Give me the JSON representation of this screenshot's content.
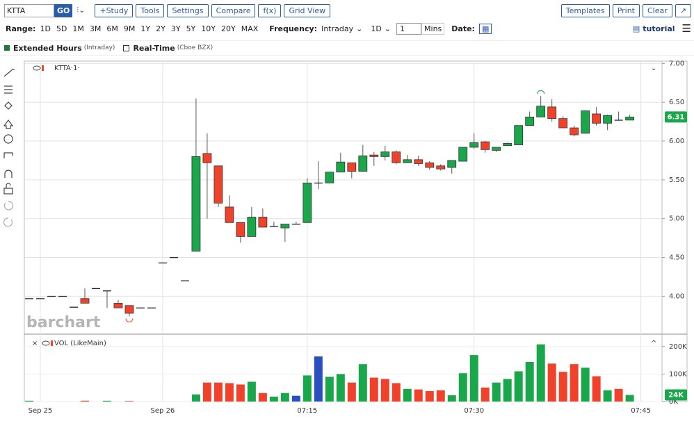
{
  "toolbar": {
    "symbol": "KTTA",
    "go": "GO",
    "buttons": [
      "+Study",
      "Tools",
      "Settings",
      "Compare",
      "f(x)",
      "Grid View"
    ],
    "right_buttons": [
      "Templates",
      "Print",
      "Clear"
    ]
  },
  "range_bar": {
    "range_label": "Range:",
    "ranges": [
      "1D",
      "5D",
      "1M",
      "3M",
      "6M",
      "9M",
      "1Y",
      "2Y",
      "3Y",
      "5Y",
      "10Y",
      "20Y",
      "MAX"
    ],
    "frequency_label": "Frequency:",
    "frequency": "Intraday",
    "period": "1D",
    "interval": "1",
    "interval_unit": "Mins",
    "date_label": "Date:",
    "tutorial": "tutorial"
  },
  "legend_bar": {
    "extended_hours": "Extended Hours",
    "extended_hours_note": "(Intraday)",
    "real_time": "Real-Time",
    "real_time_note": "(Cboe BZX)"
  },
  "chart_data": [
    {
      "type": "candlestick",
      "title": "KTTA·1·",
      "watermark": "barchart",
      "up_color": "#1aa64a",
      "down_color": "#f0412a",
      "xlim": [
        -0.44,
        56.9
      ],
      "xticks": [
        {
          "value": 1,
          "label": "Sep 25"
        },
        {
          "value": 12,
          "label": "Sep 26"
        },
        {
          "value": 25,
          "label": "07:15"
        },
        {
          "value": 40,
          "label": "07:30"
        },
        {
          "value": 55,
          "label": "07:45"
        }
      ],
      "ylim": [
        3.52,
        7.03
      ],
      "yticks": [
        {
          "value": 4,
          "label": "4.00"
        },
        {
          "value": 4.5,
          "label": "4.50"
        },
        {
          "value": 5,
          "label": "5.00"
        },
        {
          "value": 5.5,
          "label": "5.50"
        },
        {
          "value": 6,
          "label": "6.00"
        },
        {
          "value": 6.5,
          "label": "6.50"
        },
        {
          "value": 7,
          "label": "7.00"
        }
      ],
      "grid": true,
      "open": [
        3.97,
        3.97,
        4.0,
        4.0,
        3.86,
        3.97,
        4.1,
        4.07,
        3.91,
        3.88,
        3.85,
        3.85,
        4.43,
        4.5,
        4.2,
        4.58,
        5.84,
        5.68,
        5.15,
        4.95,
        4.77,
        5.02,
        4.9,
        4.88,
        4.93,
        4.95,
        5.46,
        5.46,
        5.6,
        5.72,
        5.61,
        5.82,
        5.8,
        5.86,
        5.72,
        5.76,
        5.72,
        5.68,
        5.66,
        5.74,
        5.92,
        5.99,
        5.88,
        5.94,
        5.95,
        6.2,
        6.31,
        6.44,
        6.29,
        6.17,
        6.1,
        6.35,
        6.23,
        6.27,
        6.27
      ],
      "high": [
        3.97,
        3.97,
        4.0,
        4.0,
        3.86,
        4.1,
        4.1,
        4.07,
        3.95,
        3.88,
        3.85,
        3.85,
        4.43,
        4.5,
        4.2,
        6.55,
        6.1,
        5.68,
        5.3,
        4.95,
        5.15,
        5.13,
        4.96,
        4.93,
        4.96,
        5.52,
        5.74,
        5.6,
        5.85,
        5.72,
        5.95,
        5.86,
        5.94,
        5.88,
        5.82,
        5.81,
        5.74,
        5.7,
        5.75,
        5.92,
        6.1,
        6.0,
        5.92,
        5.98,
        6.2,
        6.38,
        6.58,
        6.54,
        6.32,
        6.2,
        6.39,
        6.44,
        6.34,
        6.38,
        6.34
      ],
      "low": [
        3.97,
        3.97,
        4.0,
        4.0,
        3.86,
        3.91,
        4.1,
        3.85,
        3.85,
        3.74,
        3.85,
        3.85,
        4.43,
        4.5,
        4.2,
        4.58,
        5.0,
        5.15,
        4.95,
        4.69,
        4.77,
        4.89,
        4.9,
        4.7,
        4.93,
        4.95,
        5.38,
        5.46,
        5.6,
        5.52,
        5.61,
        5.68,
        5.75,
        5.7,
        5.72,
        5.68,
        5.63,
        5.62,
        5.58,
        5.74,
        5.9,
        5.85,
        5.86,
        5.94,
        5.95,
        6.2,
        6.31,
        6.25,
        6.17,
        6.06,
        6.1,
        6.2,
        6.14,
        6.27,
        6.27
      ],
      "close": [
        3.97,
        3.97,
        4.0,
        4.0,
        3.86,
        3.91,
        4.1,
        4.07,
        3.85,
        3.78,
        3.85,
        3.85,
        4.43,
        4.5,
        4.2,
        5.8,
        5.72,
        5.2,
        4.95,
        4.77,
        5.02,
        4.89,
        4.9,
        4.93,
        4.93,
        5.46,
        5.46,
        5.6,
        5.73,
        5.61,
        5.81,
        5.8,
        5.86,
        5.72,
        5.76,
        5.71,
        5.66,
        5.64,
        5.75,
        5.92,
        5.98,
        5.89,
        5.92,
        5.97,
        6.2,
        6.31,
        6.45,
        6.29,
        6.17,
        6.08,
        6.39,
        6.23,
        6.33,
        6.27,
        6.31
      ]
    },
    {
      "type": "bar",
      "title": "VOL (LikeMain)",
      "last_label": "24K",
      "ylim": [
        0,
        240000
      ],
      "yticks": [
        {
          "value": 0,
          "label": "0K"
        },
        {
          "value": 100000,
          "label": "100K"
        },
        {
          "value": 200000,
          "label": "200K"
        }
      ],
      "values": [
        3000,
        0,
        0,
        0,
        0,
        3000,
        0,
        3000,
        0,
        2000,
        0,
        0,
        0,
        0,
        0,
        26000,
        69000,
        69000,
        67000,
        62000,
        72000,
        31000,
        18000,
        31000,
        21000,
        95000,
        164000,
        90000,
        100000,
        69000,
        136000,
        87000,
        82000,
        67000,
        46000,
        44000,
        38000,
        41000,
        23000,
        103000,
        169000,
        51000,
        69000,
        82000,
        110000,
        144000,
        208000,
        138000,
        108000,
        136000,
        123000,
        92000,
        41000,
        46000,
        24000
      ],
      "colors": [
        "#1aa64a",
        "#1aa64a",
        "#1aa64a",
        "#1aa64a",
        "#f0412a",
        "#f0412a",
        "#1aa64a",
        "#1aa64a",
        "#f0412a",
        "#f0412a",
        "#f0412a",
        "#f0412a",
        "#1aa64a",
        "#1aa64a",
        "#f0412a",
        "#1aa64a",
        "#f0412a",
        "#f0412a",
        "#f0412a",
        "#f0412a",
        "#1aa64a",
        "#f0412a",
        "#1aa64a",
        "#1aa64a",
        "#2a4fbf",
        "#1aa64a",
        "#2a4fbf",
        "#1aa64a",
        "#1aa64a",
        "#f0412a",
        "#1aa64a",
        "#f0412a",
        "#f0412a",
        "#f0412a",
        "#1aa64a",
        "#f0412a",
        "#f0412a",
        "#f0412a",
        "#1aa64a",
        "#1aa64a",
        "#1aa64a",
        "#f0412a",
        "#1aa64a",
        "#1aa64a",
        "#1aa64a",
        "#1aa64a",
        "#1aa64a",
        "#f0412a",
        "#f0412a",
        "#f0412a",
        "#1aa64a",
        "#f0412a",
        "#1aa64a",
        "#f0412a",
        "#1aa64a"
      ]
    }
  ]
}
